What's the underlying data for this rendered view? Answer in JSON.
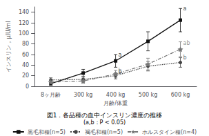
{
  "chart_data": {
    "type": "line",
    "title": "図1．各品種の血中インスリン濃度の推移",
    "subtitle": "(a,b：P < 0.05)",
    "xlabel": "月齢/体重",
    "ylabel": "インスリン，μIU/ml",
    "categories": [
      "8ヶ月齢",
      "300 kg",
      "400 kg",
      "500 kg",
      "600 kg"
    ],
    "series": [
      {
        "name": "黒毛和種(n=5)",
        "color": "#111111",
        "values": [
          5,
          25,
          48,
          85,
          125
        ],
        "errors": [
          3,
          7,
          12,
          18,
          22
        ],
        "marker": "square",
        "line_style": "solid"
      },
      {
        "name": "褐毛和種(n=5)",
        "color": "#444444",
        "values": [
          12,
          13,
          20,
          38,
          45
        ],
        "errors": [
          4,
          5,
          6,
          9,
          9
        ],
        "marker": "circle",
        "line_style": "dotted"
      },
      {
        "name": "ホルスタイン種(n=4)",
        "color": "#777777",
        "values": [
          8,
          10,
          23,
          42,
          70
        ],
        "errors": [
          3,
          4,
          7,
          11,
          14
        ],
        "marker": "star",
        "line_style": "dashdot"
      }
    ],
    "annotations": [
      {
        "x": "400 kg",
        "y": 60,
        "text": "a",
        "color": "#111111"
      },
      {
        "x": "400 kg",
        "y": 27,
        "text": "b",
        "color": "#444444"
      },
      {
        "x": "400 kg",
        "y": 30,
        "text": "b",
        "color": "#777777"
      },
      {
        "x": "600 kg",
        "y": 147,
        "text": "a",
        "color": "#111111"
      },
      {
        "x": "600 kg",
        "y": 82,
        "text": "ab",
        "color": "#777777"
      },
      {
        "x": "600 kg",
        "y": 54,
        "text": "b",
        "color": "#444444"
      }
    ],
    "ylim": [
      0,
      150
    ],
    "yticks": [
      0,
      20,
      40,
      60,
      80,
      100,
      120,
      140
    ],
    "grid": false,
    "legend": "bottom"
  }
}
